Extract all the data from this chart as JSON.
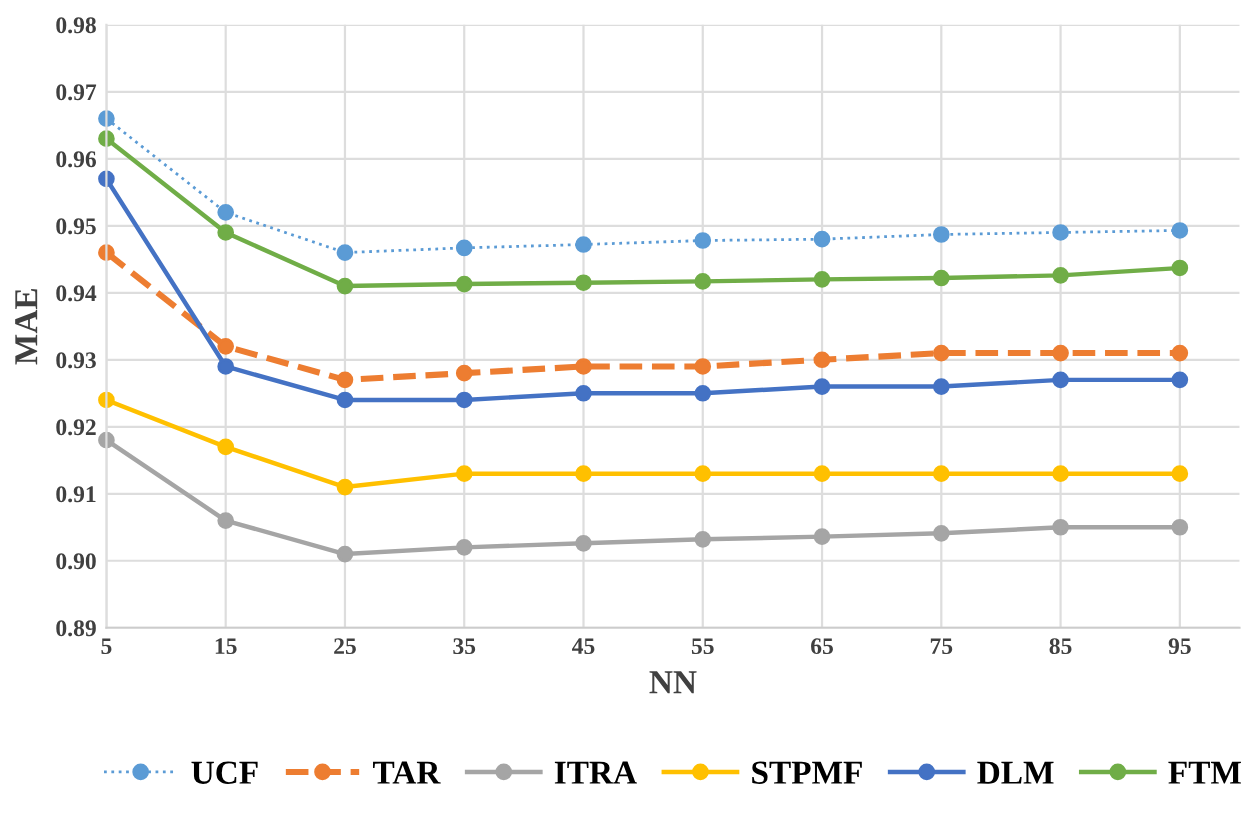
{
  "chart_data": {
    "type": "line",
    "xlabel": "NN",
    "ylabel": "MAE",
    "x": [
      5,
      15,
      25,
      35,
      45,
      55,
      65,
      75,
      85,
      95
    ],
    "xlim": [
      5,
      100
    ],
    "xticks": [
      5,
      15,
      25,
      35,
      45,
      55,
      65,
      75,
      85,
      95
    ],
    "ylim": [
      0.89,
      0.98
    ],
    "yticks": [
      {
        "value": 0.89,
        "label": "0.89"
      },
      {
        "value": 0.9,
        "label": "0.90"
      },
      {
        "value": 0.91,
        "label": "0.91"
      },
      {
        "value": 0.92,
        "label": "0.92"
      },
      {
        "value": 0.93,
        "label": "0.93"
      },
      {
        "value": 0.94,
        "label": "0.94"
      },
      {
        "value": 0.95,
        "label": "0.95"
      },
      {
        "value": 0.96,
        "label": "0.96"
      },
      {
        "value": 0.97,
        "label": "0.97"
      },
      {
        "value": 0.98,
        "label": "0.98"
      }
    ],
    "grid": true,
    "legend": "bottom",
    "marker": "circle",
    "series": [
      {
        "name": "UCF",
        "color": "#5b9bd5",
        "line_style": "dotted",
        "values": [
          0.966,
          0.952,
          0.946,
          0.9467,
          0.9472,
          0.9478,
          0.948,
          0.9487,
          0.949,
          0.9493
        ]
      },
      {
        "name": "TAR",
        "color": "#ed7d31",
        "line_style": "dashed",
        "values": [
          0.946,
          0.932,
          0.927,
          0.928,
          0.929,
          0.929,
          0.93,
          0.931,
          0.931,
          0.931
        ]
      },
      {
        "name": "ITRA",
        "color": "#a5a5a5",
        "line_style": "solid",
        "values": [
          0.918,
          0.906,
          0.901,
          0.902,
          0.9026,
          0.9032,
          0.9036,
          0.9041,
          0.905,
          0.905
        ]
      },
      {
        "name": "STPMF",
        "color": "#ffc000",
        "line_style": "solid",
        "values": [
          0.924,
          0.917,
          0.911,
          0.913,
          0.913,
          0.913,
          0.913,
          0.913,
          0.913,
          0.913
        ]
      },
      {
        "name": "DLM",
        "color": "#4472c4",
        "line_style": "solid",
        "values": [
          0.957,
          0.929,
          0.924,
          0.924,
          0.925,
          0.925,
          0.926,
          0.926,
          0.927,
          0.927
        ]
      },
      {
        "name": "FTM",
        "color": "#70ad47",
        "line_style": "solid",
        "values": [
          0.963,
          0.949,
          0.941,
          0.9413,
          0.9415,
          0.9417,
          0.942,
          0.9422,
          0.9426,
          0.9437
        ]
      }
    ]
  }
}
